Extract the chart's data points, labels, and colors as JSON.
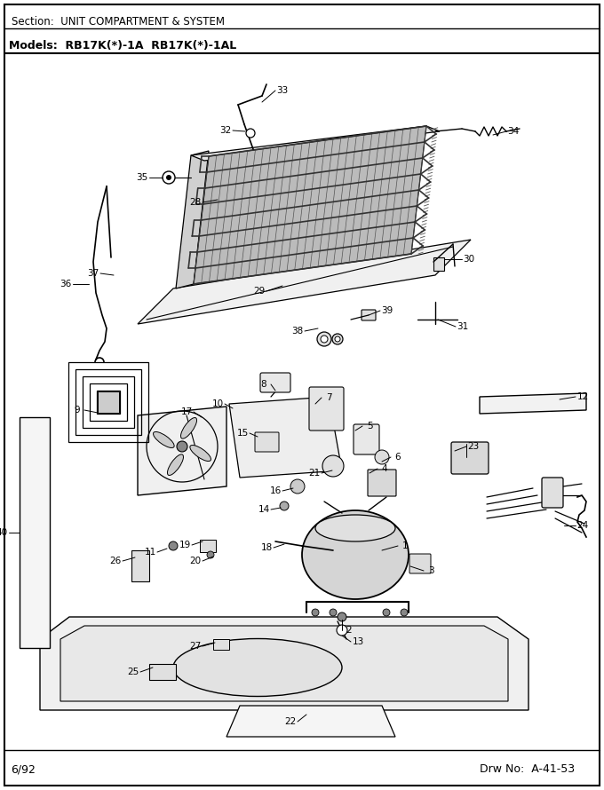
{
  "title_section": "Section:  UNIT COMPARTMENT & SYSTEM",
  "title_models": "Models:  RB17K(*)-1A  RB17K(*)-1AL",
  "footer_left": "6/92",
  "footer_right": "Drw No:  A-41-53",
  "bg_color": "#ffffff",
  "fig_width": 6.8,
  "fig_height": 8.9,
  "dpi": 100,
  "coil_color": "#888888",
  "fin_color": "#666666",
  "light_gray": "#cccccc",
  "mid_gray": "#aaaaaa",
  "dark_gray": "#444444"
}
